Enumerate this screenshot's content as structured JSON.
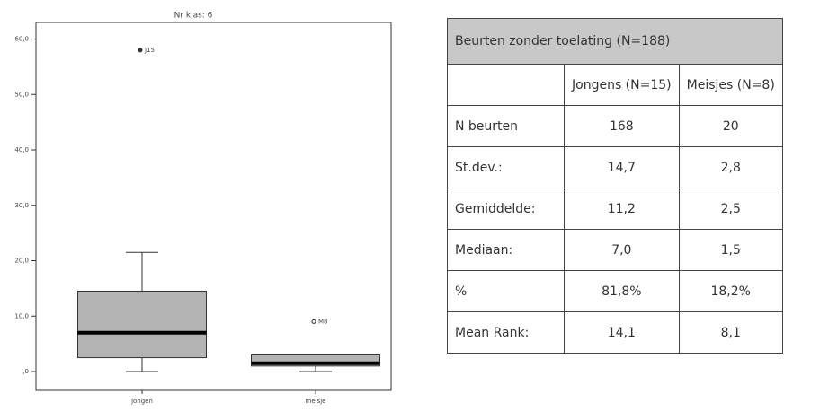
{
  "chart_data": {
    "type": "boxplot",
    "title": "Nr klas: 6",
    "categories": [
      "jongen",
      "meisje"
    ],
    "boxes": [
      {
        "min": 0,
        "q1": 2.5,
        "median": 7,
        "q3": 14.5,
        "max": 21.5,
        "outliers": [
          {
            "value": 58,
            "label": "J15"
          }
        ]
      },
      {
        "min": 0,
        "q1": 1,
        "median": 1.5,
        "q3": 3,
        "max": 3,
        "outliers": [
          {
            "value": 9,
            "label": "M8"
          }
        ]
      }
    ],
    "color": "#b4b4b4",
    "ylim": [
      -3.4,
      63
    ],
    "yticks": [
      {
        "value": 0,
        "label": ",0"
      },
      {
        "value": 10,
        "label": "10,0"
      },
      {
        "value": 20,
        "label": "20,0"
      },
      {
        "value": 30,
        "label": "30,0"
      },
      {
        "value": 40,
        "label": "40,0"
      },
      {
        "value": 50,
        "label": "50,0"
      },
      {
        "value": 60,
        "label": "60,0"
      }
    ]
  },
  "table": {
    "title": "Beurten zonder toelating (N=188)",
    "columns": [
      "Jongens (N=15)",
      "Meisjes (N=8)"
    ],
    "rows": [
      {
        "label": "N beurten",
        "values": [
          "168",
          "20"
        ]
      },
      {
        "label": "St.dev.:",
        "values": [
          "14,7",
          "2,8"
        ]
      },
      {
        "label": "Gemiddelde:",
        "values": [
          "11,2",
          "2,5"
        ]
      },
      {
        "label": "Mediaan:",
        "values": [
          "7,0",
          "1,5"
        ]
      },
      {
        "label": "%",
        "values": [
          "81,8%",
          "18,2%"
        ]
      },
      {
        "label": "Mean Rank:",
        "values": [
          "14,1",
          "8,1"
        ]
      }
    ]
  }
}
